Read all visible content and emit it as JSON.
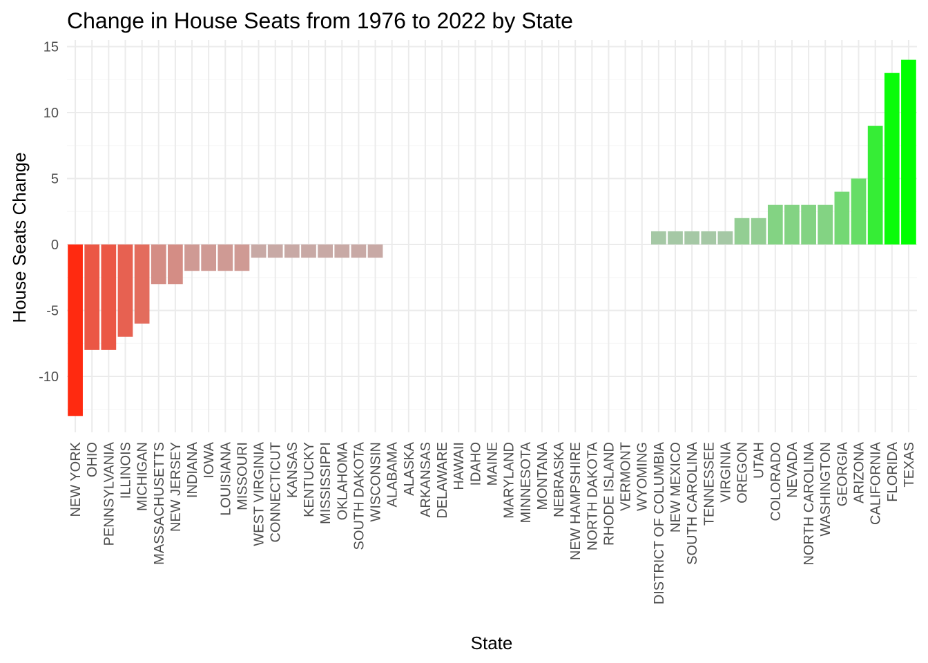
{
  "chart_data": {
    "type": "bar",
    "title": "Change in House Seats from 1976 to 2022 by State",
    "xlabel": "State",
    "ylabel": "House Seats Change",
    "ylim": [
      -13.5,
      15
    ],
    "yticks": [
      -10,
      -5,
      0,
      5,
      10,
      15
    ],
    "grid": true,
    "legend": "none",
    "color_low": "#ff2a10",
    "color_mid": "#bfbfbf",
    "color_high": "#00ff00",
    "categories": [
      "NEW YORK",
      "OHIO",
      "PENNSYLVANIA",
      "ILLINOIS",
      "MICHIGAN",
      "MASSACHUSETTS",
      "NEW JERSEY",
      "INDIANA",
      "IOWA",
      "LOUISIANA",
      "MISSOURI",
      "WEST VIRGINIA",
      "CONNECTICUT",
      "KANSAS",
      "KENTUCKY",
      "MISSISSIPPI",
      "OKLAHOMA",
      "SOUTH DAKOTA",
      "WISCONSIN",
      "ALABAMA",
      "ALASKA",
      "ARKANSAS",
      "DELAWARE",
      "HAWAII",
      "IDAHO",
      "MAINE",
      "MARYLAND",
      "MINNESOTA",
      "MONTANA",
      "NEBRASKA",
      "NEW HAMPSHIRE",
      "NORTH DAKOTA",
      "RHODE ISLAND",
      "VERMONT",
      "WYOMING",
      "DISTRICT OF COLUMBIA",
      "NEW MEXICO",
      "SOUTH CAROLINA",
      "TENNESSEE",
      "VIRGINIA",
      "OREGON",
      "UTAH",
      "COLORADO",
      "NEVADA",
      "NORTH CAROLINA",
      "WASHINGTON",
      "GEORGIA",
      "ARIZONA",
      "CALIFORNIA",
      "FLORIDA",
      "TEXAS"
    ],
    "values": [
      -13,
      -8,
      -8,
      -7,
      -6,
      -3,
      -3,
      -2,
      -2,
      -2,
      -2,
      -1,
      -1,
      -1,
      -1,
      -1,
      -1,
      -1,
      -1,
      0,
      0,
      0,
      0,
      0,
      0,
      0,
      0,
      0,
      0,
      0,
      0,
      0,
      0,
      0,
      0,
      1,
      1,
      1,
      1,
      1,
      2,
      2,
      3,
      3,
      3,
      3,
      4,
      5,
      9,
      13,
      14
    ]
  }
}
